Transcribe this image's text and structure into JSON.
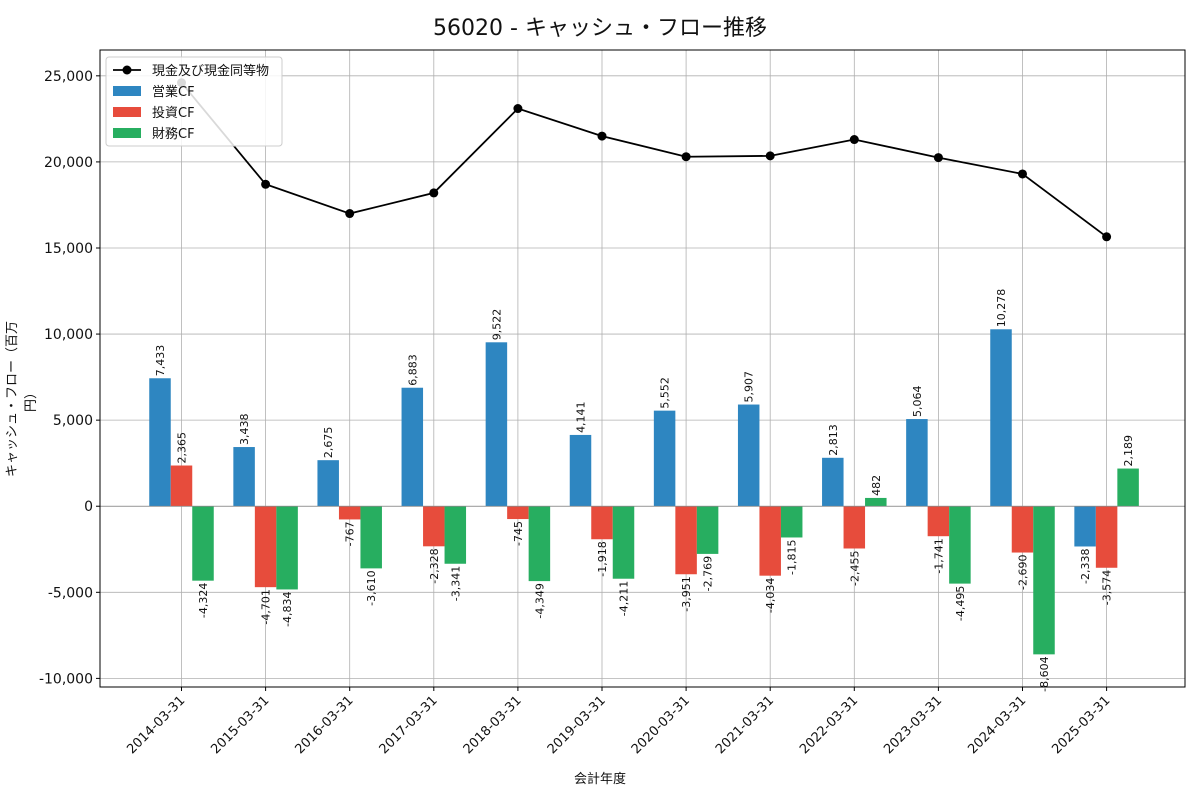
{
  "chart_data": {
    "type": "bar",
    "title": "56020 - キャッシュ・フロー推移",
    "xlabel": "会計年度",
    "ylabel": "キャッシュ・フロー（百万円）",
    "ylim": [
      -10500,
      26500
    ],
    "yticks": [
      -10000,
      -5000,
      0,
      5000,
      10000,
      15000,
      20000,
      25000
    ],
    "grid": true,
    "legend_position": "top-left",
    "categories": [
      "2014-03-31",
      "2015-03-31",
      "2016-03-31",
      "2017-03-31",
      "2018-03-31",
      "2019-03-31",
      "2020-03-31",
      "2021-03-31",
      "2022-03-31",
      "2023-03-31",
      "2024-03-31",
      "2025-03-31"
    ],
    "series": [
      {
        "name": "営業CF",
        "type": "bar",
        "color": "#2e86c1",
        "values": [
          7433,
          3438,
          2675,
          6883,
          9522,
          4141,
          5552,
          5907,
          2813,
          5064,
          10278,
          -2338
        ]
      },
      {
        "name": "投資CF",
        "type": "bar",
        "color": "#e74c3c",
        "values": [
          2365,
          -4701,
          -767,
          -2328,
          -745,
          -1918,
          -3951,
          -4034,
          -2455,
          -1741,
          -2690,
          -3574
        ]
      },
      {
        "name": "財務CF",
        "type": "bar",
        "color": "#27ae60",
        "values": [
          -4324,
          -4834,
          -3610,
          -3341,
          -4349,
          -4211,
          -2769,
          -1815,
          482,
          -4495,
          -8604,
          2189
        ]
      },
      {
        "name": "現金及び現金同等物",
        "type": "line",
        "color": "#000000",
        "values": [
          24600,
          18700,
          17000,
          18200,
          23100,
          21500,
          20300,
          20350,
          21300,
          20250,
          19300,
          15650
        ]
      }
    ]
  }
}
